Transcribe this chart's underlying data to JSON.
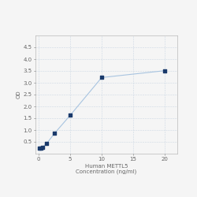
{
  "x": [
    0.156,
    0.313,
    0.625,
    1.25,
    2.5,
    5,
    10,
    20
  ],
  "y": [
    0.221,
    0.246,
    0.282,
    0.418,
    0.852,
    1.62,
    3.22,
    3.51
  ],
  "line_color": "#a8c4e0",
  "marker_color": "#1a3a6b",
  "marker_size": 3.5,
  "xlabel_line1": "Human METTL5",
  "xlabel_line2": "Concentration (ng/ml)",
  "ylabel": "OD",
  "xlim": [
    -0.5,
    22
  ],
  "ylim": [
    0,
    5.0
  ],
  "yticks": [
    0.5,
    1.0,
    1.5,
    2.0,
    2.5,
    3.0,
    3.5,
    4.0,
    4.5
  ],
  "xticks": [
    0,
    5,
    10,
    15,
    20
  ],
  "xtick_labels": [
    "0",
    "5",
    "10",
    "15",
    "20"
  ],
  "grid_color": "#ccd8e4",
  "bg_color": "#f5f5f5",
  "label_fontsize": 5,
  "tick_fontsize": 5
}
